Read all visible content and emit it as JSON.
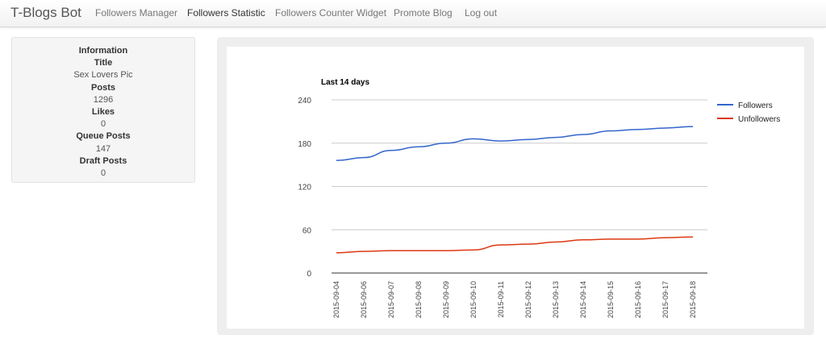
{
  "navbar": {
    "brand": "T-Blogs Bot",
    "items": [
      {
        "label": "Followers Manager",
        "active": false
      },
      {
        "label": "Followers Statistic",
        "active": true
      },
      {
        "label": "Followers Counter Widget",
        "active": false
      },
      {
        "label": "Promote Blog",
        "active": false
      },
      {
        "label": "Log out",
        "active": false
      }
    ]
  },
  "info": {
    "heading": "Information",
    "title_label": "Title",
    "title_value": "Sex Lovers Pic",
    "posts_label": "Posts",
    "posts_value": "1296",
    "likes_label": "Likes",
    "likes_value": "0",
    "queue_label": "Queue Posts",
    "queue_value": "147",
    "draft_label": "Draft Posts",
    "draft_value": "0"
  },
  "chart_data": {
    "type": "line",
    "title": "Last 14 days",
    "categories": [
      "2015-09-04",
      "2015-09-06",
      "2015-09-07",
      "2015-09-08",
      "2015-09-09",
      "2015-09-10",
      "2015-09-11",
      "2015-09-12",
      "2015-09-13",
      "2015-09-14",
      "2015-09-15",
      "2015-09-16",
      "2015-09-17",
      "2015-09-18"
    ],
    "ylim": [
      0,
      240
    ],
    "yticks": [
      0,
      60,
      120,
      180,
      240
    ],
    "grid": true,
    "legend_position": "right",
    "series": [
      {
        "name": "Followers",
        "color": "#3366cc",
        "values": [
          156,
          160,
          170,
          175,
          180,
          186,
          183,
          185,
          188,
          192,
          197,
          199,
          201,
          203
        ]
      },
      {
        "name": "Unfollowers",
        "color": "#dc3912",
        "values": [
          28,
          30,
          31,
          31,
          31,
          32,
          39,
          40,
          43,
          46,
          47,
          47,
          49,
          50
        ]
      }
    ]
  }
}
